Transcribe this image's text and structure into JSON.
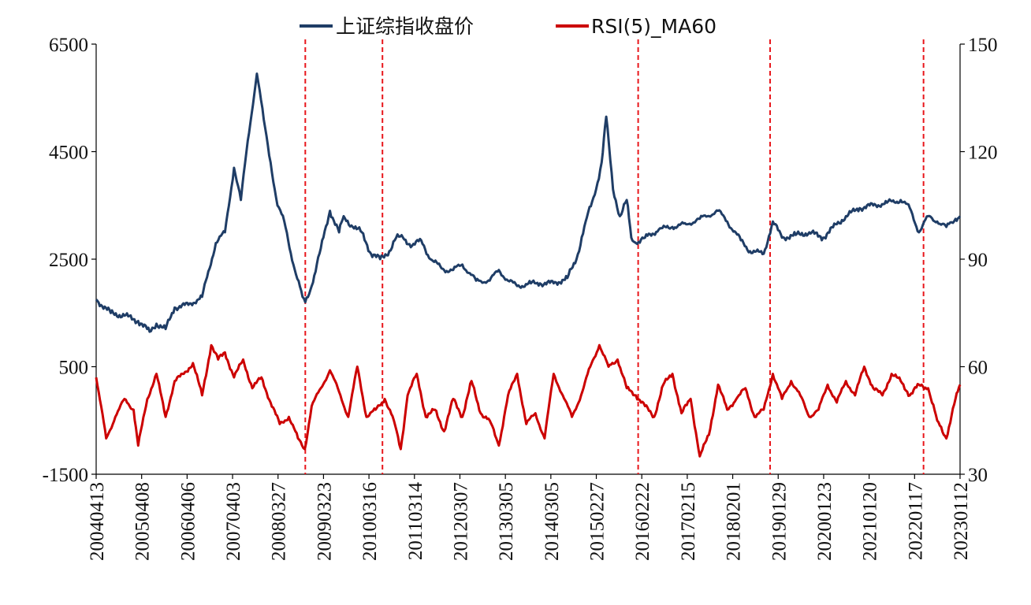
{
  "chart_data": {
    "type": "line",
    "legend_position": "top-center",
    "grid": false,
    "series": [
      {
        "name": "上证综指收盘价",
        "axis": "left",
        "color": "#1f3d66",
        "x": [
          2004.28,
          2004.6,
          2004.9,
          2005.2,
          2005.45,
          2005.6,
          2005.8,
          2006.0,
          2006.3,
          2006.6,
          2006.9,
          2007.1,
          2007.3,
          2007.45,
          2007.6,
          2007.8,
          2007.95,
          2008.1,
          2008.25,
          2008.4,
          2008.6,
          2008.8,
          2008.86,
          2009.0,
          2009.2,
          2009.4,
          2009.6,
          2009.7,
          2009.9,
          2010.1,
          2010.3,
          2010.5,
          2010.7,
          2010.85,
          2011.0,
          2011.2,
          2011.4,
          2011.6,
          2011.9,
          2012.1,
          2012.3,
          2012.6,
          2012.9,
          2013.1,
          2013.3,
          2013.5,
          2013.8,
          2014.0,
          2014.3,
          2014.6,
          2014.8,
          2015.0,
          2015.2,
          2015.35,
          2015.45,
          2015.6,
          2015.75,
          2015.9,
          2016.0,
          2016.1,
          2016.3,
          2016.6,
          2016.9,
          2017.2,
          2017.5,
          2017.9,
          2018.1,
          2018.4,
          2018.6,
          2018.9,
          2019.1,
          2019.3,
          2019.6,
          2019.9,
          2020.2,
          2020.5,
          2020.7,
          2021.0,
          2021.3,
          2021.6,
          2021.9,
          2022.1,
          2022.3,
          2022.5,
          2022.7,
          2022.9,
          2023.1,
          2023.2
        ],
        "y": [
          1750,
          1500,
          1450,
          1350,
          1150,
          1300,
          1200,
          1600,
          1650,
          1800,
          2800,
          3000,
          4200,
          3600,
          4700,
          5950,
          5100,
          4300,
          3500,
          3200,
          2400,
          1800,
          1700,
          2000,
          2700,
          3400,
          3000,
          3300,
          3100,
          3000,
          2600,
          2500,
          2650,
          2900,
          2900,
          2750,
          2850,
          2500,
          2300,
          2300,
          2400,
          2100,
          2100,
          2300,
          2100,
          2000,
          2050,
          2050,
          2050,
          2150,
          2500,
          3200,
          3700,
          4300,
          5150,
          3800,
          3300,
          3600,
          2900,
          2800,
          2900,
          3050,
          3100,
          3150,
          3250,
          3400,
          3200,
          2850,
          2650,
          2600,
          3200,
          2900,
          2950,
          3000,
          2900,
          3150,
          3300,
          3450,
          3500,
          3550,
          3600,
          3450,
          3000,
          3300,
          3200,
          3100,
          3250,
          3300
        ]
      },
      {
        "name": "RSI(5)_MA60",
        "axis": "right",
        "color": "#cc0000",
        "x": [
          2004.28,
          2004.5,
          2004.7,
          2004.9,
          2005.1,
          2005.2,
          2005.4,
          2005.6,
          2005.8,
          2006.0,
          2006.2,
          2006.4,
          2006.6,
          2006.8,
          2006.95,
          2007.1,
          2007.3,
          2007.5,
          2007.7,
          2007.9,
          2008.1,
          2008.3,
          2008.5,
          2008.7,
          2008.85,
          2009.0,
          2009.2,
          2009.4,
          2009.6,
          2009.8,
          2010.0,
          2010.2,
          2010.4,
          2010.6,
          2010.8,
          2010.95,
          2011.1,
          2011.3,
          2011.5,
          2011.7,
          2011.9,
          2012.1,
          2012.3,
          2012.5,
          2012.7,
          2012.9,
          2013.1,
          2013.3,
          2013.5,
          2013.7,
          2013.9,
          2014.1,
          2014.3,
          2014.5,
          2014.7,
          2014.9,
          2015.1,
          2015.3,
          2015.5,
          2015.7,
          2015.9,
          2016.1,
          2016.3,
          2016.5,
          2016.7,
          2016.9,
          2017.1,
          2017.3,
          2017.5,
          2017.7,
          2017.9,
          2018.1,
          2018.3,
          2018.5,
          2018.7,
          2018.9,
          2019.1,
          2019.3,
          2019.5,
          2019.7,
          2019.9,
          2020.1,
          2020.3,
          2020.5,
          2020.7,
          2020.9,
          2021.1,
          2021.3,
          2021.5,
          2021.7,
          2021.9,
          2022.1,
          2022.3,
          2022.5,
          2022.7,
          2022.9,
          2023.1,
          2023.2
        ],
        "y": [
          57,
          40,
          46,
          51,
          48,
          38,
          51,
          58,
          46,
          56,
          58,
          61,
          52,
          66,
          62,
          64,
          57,
          62,
          54,
          57,
          50,
          44,
          46,
          40,
          37,
          49,
          54,
          59,
          53,
          46,
          60,
          46,
          48,
          51,
          45,
          37,
          52,
          58,
          46,
          48,
          42,
          51,
          46,
          56,
          47,
          45,
          38,
          52,
          58,
          44,
          47,
          40,
          58,
          52,
          46,
          52,
          60,
          66,
          60,
          62,
          54,
          52,
          49,
          46,
          55,
          58,
          47,
          51,
          35,
          41,
          55,
          48,
          51,
          54,
          46,
          48,
          58,
          51,
          56,
          52,
          46,
          48,
          55,
          50,
          56,
          52,
          60,
          54,
          52,
          58,
          56,
          52,
          55,
          54,
          45,
          40,
          51,
          55
        ]
      }
    ],
    "y_left": {
      "ylim": [
        -1500,
        6500
      ],
      "ticks": [
        6500,
        4500,
        2500,
        500,
        -1500
      ],
      "tick_labels": [
        "6500",
        "4500",
        "2500",
        "500",
        "-1500"
      ]
    },
    "y_right": {
      "ylim": [
        30,
        150
      ],
      "ticks": [
        150,
        120,
        90,
        60,
        30
      ],
      "tick_labels": [
        "150",
        "120",
        "90",
        "60",
        "30"
      ]
    },
    "x_axis": {
      "xlim": [
        2004.28,
        2023.2
      ],
      "tick_labels": [
        "20040413",
        "20050408",
        "20060406",
        "20070403",
        "20080327",
        "20090323",
        "20100316",
        "20110314",
        "20120307",
        "20130305",
        "20140305",
        "20150227",
        "20160222",
        "20170215",
        "20180201",
        "20190129",
        "20200123",
        "20210120",
        "20220117",
        "20230112"
      ]
    },
    "vlines": {
      "color": "#e8161b",
      "x": [
        2008.86,
        2010.55,
        2016.15,
        2019.04,
        2022.4
      ]
    }
  }
}
